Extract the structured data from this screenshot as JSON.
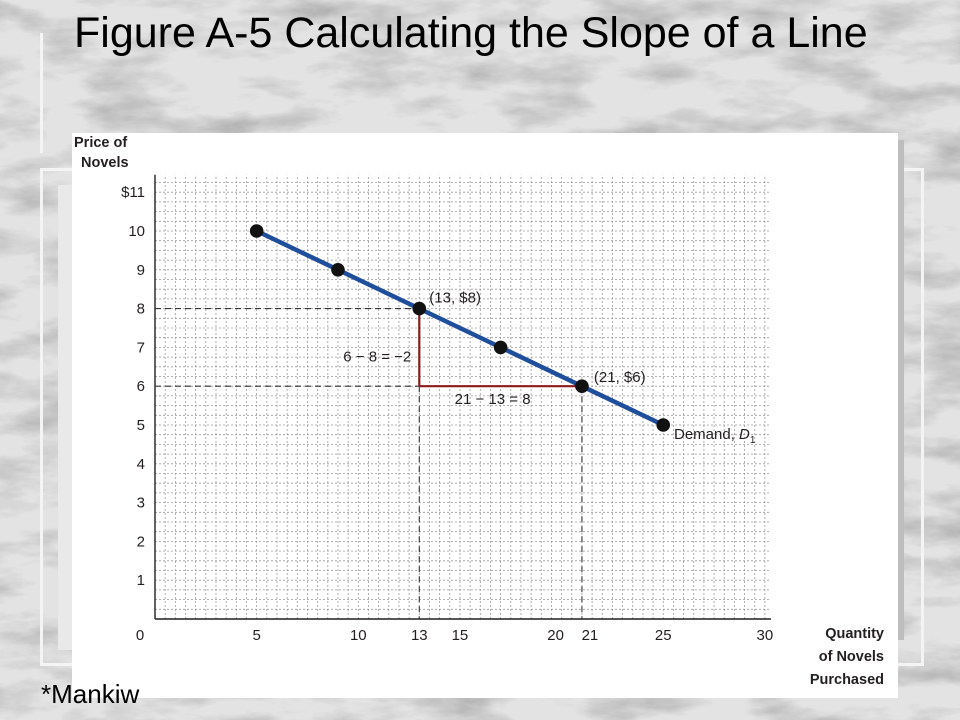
{
  "slide": {
    "title": "Figure A-5 Calculating the Slope of a Line",
    "credit": "*Mankiw"
  },
  "colors": {
    "line": "#1f4e9c",
    "triangle": "#8b1a1a",
    "grid": "#9a9a9a",
    "point": "#111111"
  },
  "chart_data": {
    "type": "line",
    "title": "Figure A-5 Calculating the Slope of a Line",
    "xlabel": "Quantity of Novels Purchased",
    "ylabel": "Price of Novels",
    "xlim": [
      0,
      30
    ],
    "ylim": [
      0,
      11
    ],
    "grid": true,
    "x_ticks": [
      0,
      5,
      10,
      13,
      15,
      20,
      21,
      25,
      30
    ],
    "x_tick_labels": [
      "0",
      "5",
      "10",
      "13",
      "15",
      "20",
      "21",
      "25",
      "30"
    ],
    "y_ticks": [
      1,
      2,
      3,
      4,
      5,
      6,
      7,
      8,
      9,
      10,
      11
    ],
    "y_tick_labels": [
      "1",
      "2",
      "3",
      "4",
      "5",
      "6",
      "7",
      "8",
      "9",
      "10",
      "$11"
    ],
    "series": [
      {
        "name": "Demand, D1",
        "x": [
          5,
          9,
          13,
          17,
          21,
          25
        ],
        "y": [
          10,
          9,
          8,
          7,
          6,
          5
        ]
      }
    ],
    "annotations": {
      "point_a": {
        "x": 13,
        "y": 8,
        "label": "(13, $8)"
      },
      "point_b": {
        "x": 21,
        "y": 6,
        "label": "(21, $6)"
      },
      "rise_label": "6 − 8 = −2",
      "run_label": "21 − 13 = 8",
      "series_label": "Demand, ",
      "series_symbol": "D",
      "series_subscript": "1"
    }
  }
}
